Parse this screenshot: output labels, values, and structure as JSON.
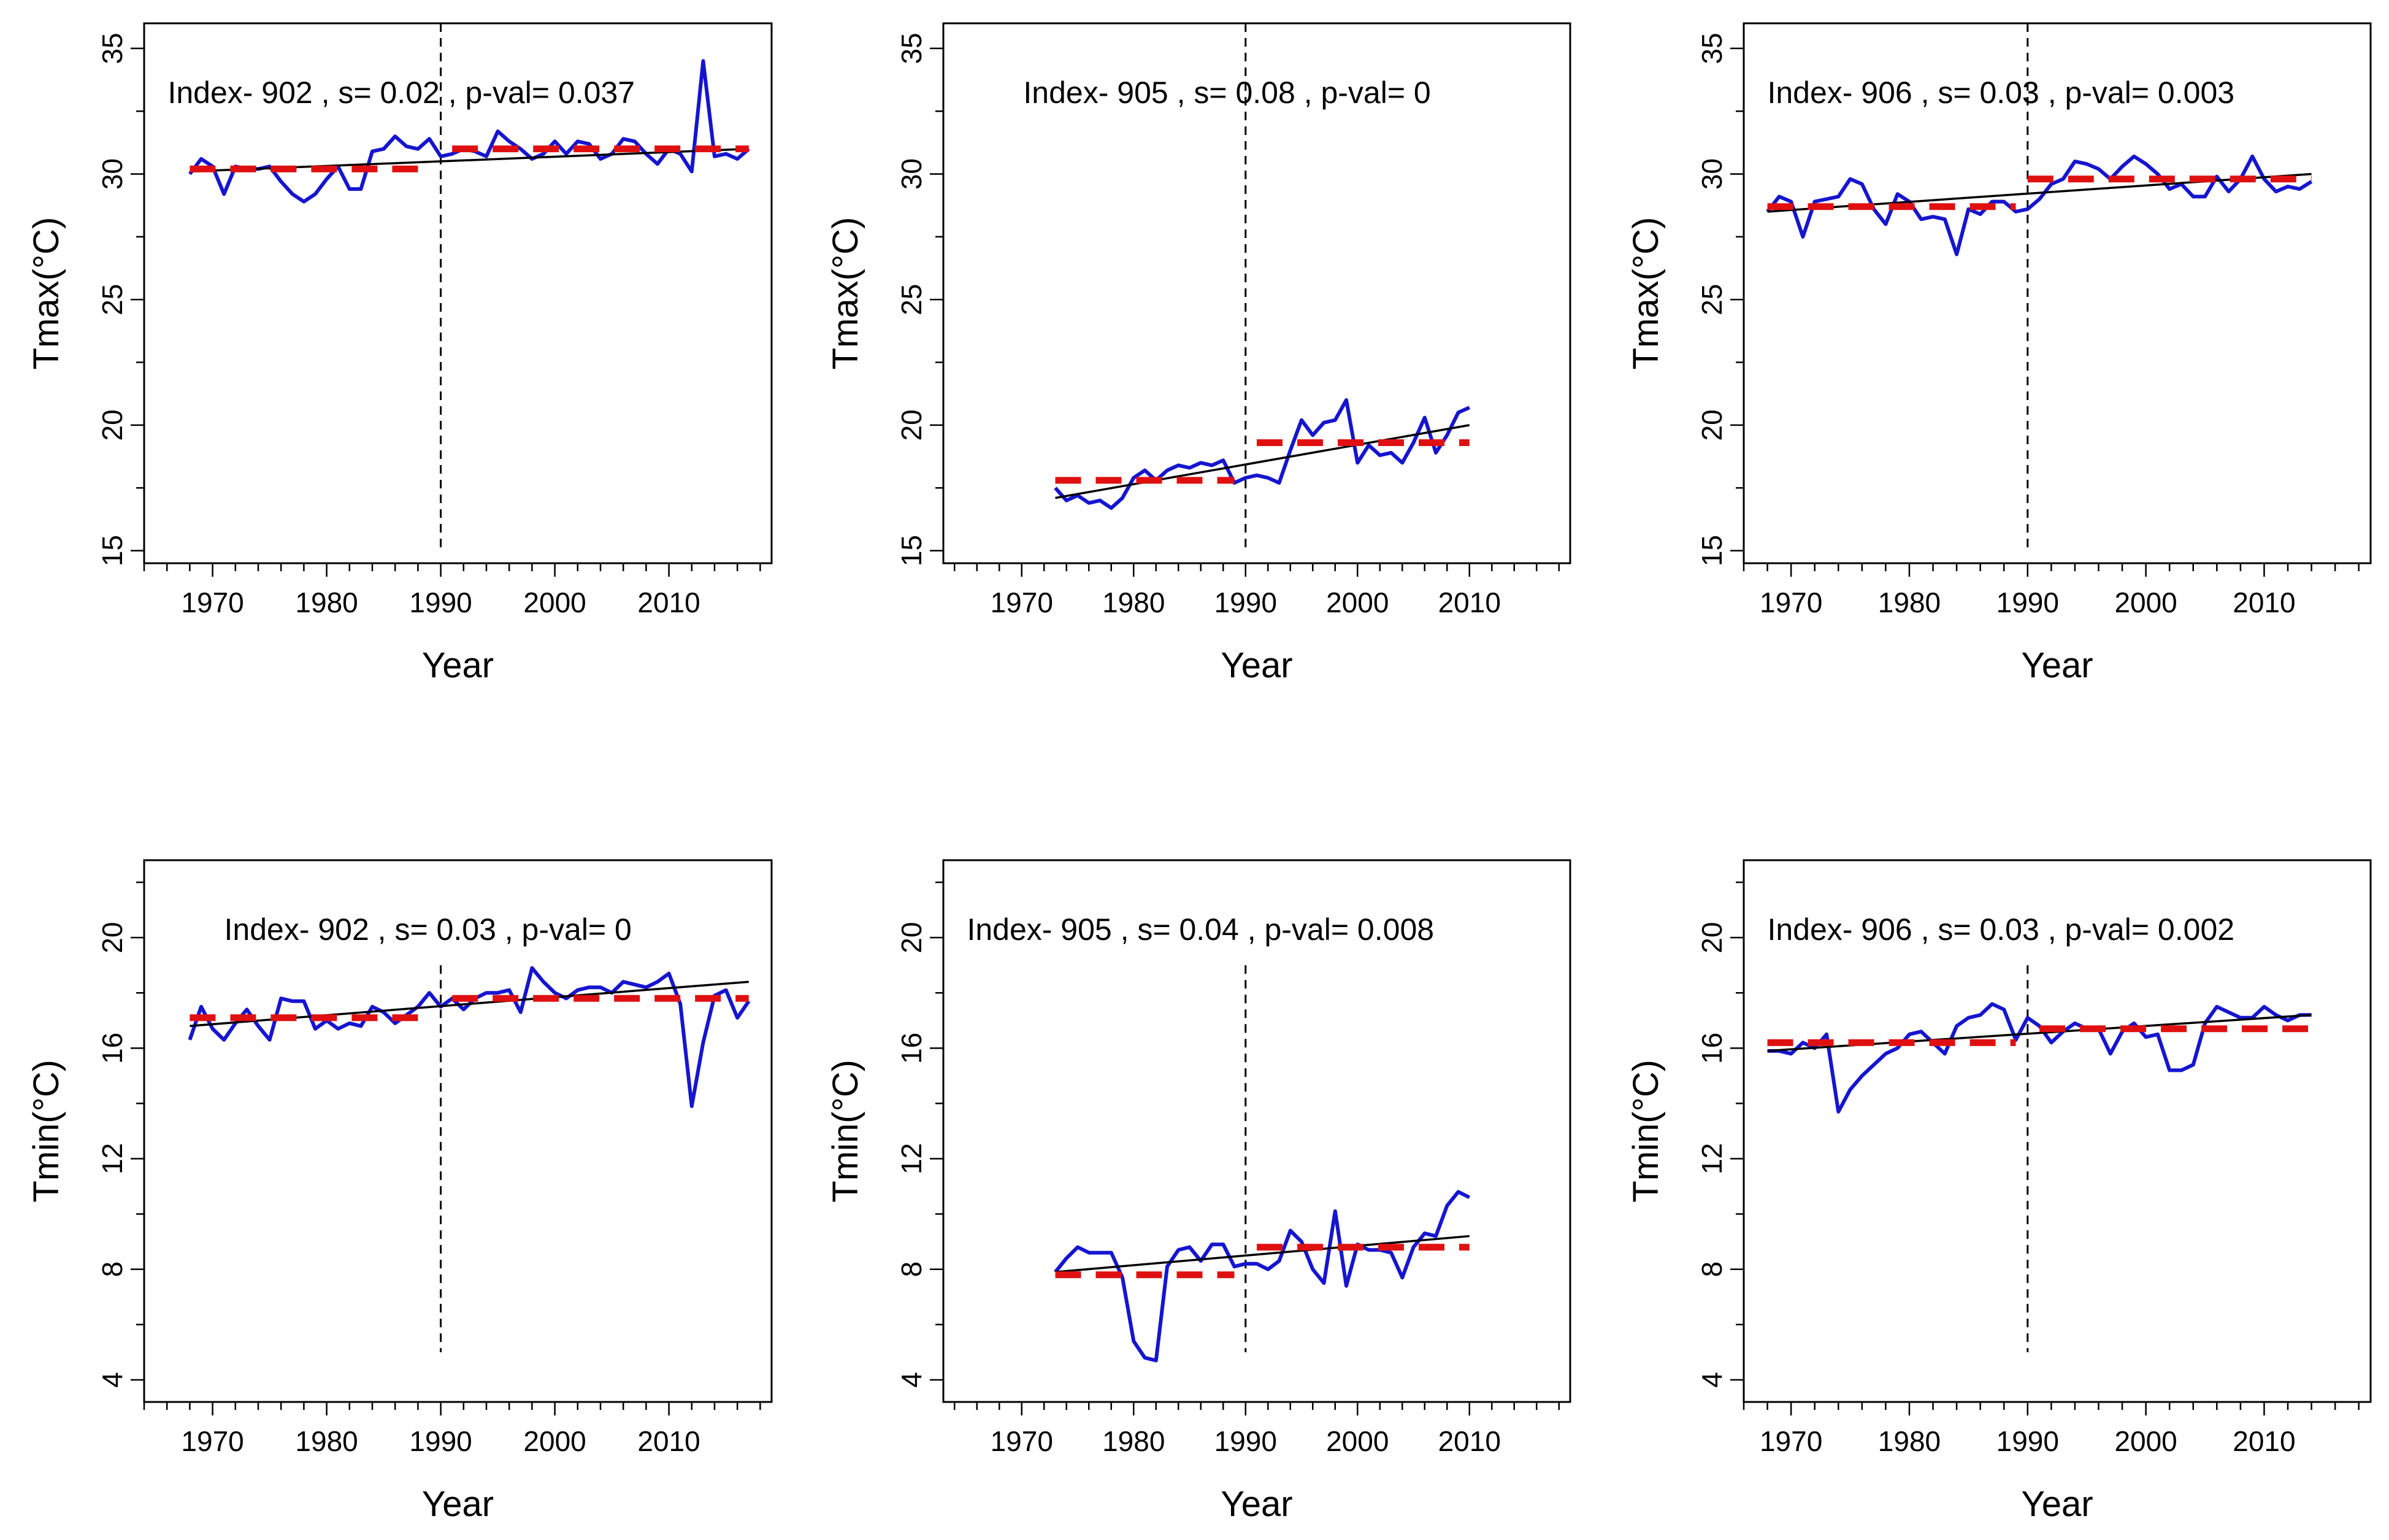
{
  "chart_data": [
    {
      "type": "line",
      "annotation": "Index- 902 , s= 0.02 , p-val= 0.037",
      "xlabel": "Year",
      "ylabel": "Tmax(°C)",
      "xlim": [
        1964,
        2019
      ],
      "ylim": [
        14.5,
        36
      ],
      "xticks": [
        "1970",
        "1980",
        "1990",
        "2000",
        "2010"
      ],
      "yticks": [
        "15",
        "20",
        "25",
        "30",
        "35"
      ],
      "change_point": 1990,
      "vline_y": [
        15,
        36
      ],
      "series": [
        {
          "role": "observed",
          "color": "#1515d0",
          "x": [
            1968,
            1969,
            1970,
            1971,
            1972,
            1973,
            1974,
            1975,
            1976,
            1977,
            1978,
            1979,
            1980,
            1981,
            1982,
            1983,
            1984,
            1985,
            1986,
            1987,
            1988,
            1989,
            1990,
            1991,
            1992,
            1993,
            1994,
            1995,
            1996,
            1997,
            1998,
            1999,
            2000,
            2001,
            2002,
            2003,
            2004,
            2005,
            2006,
            2007,
            2008,
            2009,
            2010,
            2011,
            2012,
            2013,
            2014,
            2015,
            2016,
            2017
          ],
          "y": [
            30.0,
            30.6,
            30.3,
            29.2,
            30.3,
            30.2,
            30.2,
            30.3,
            29.7,
            29.2,
            28.9,
            29.2,
            29.8,
            30.3,
            29.4,
            29.4,
            30.9,
            31.0,
            31.5,
            31.1,
            31.0,
            31.4,
            30.7,
            30.8,
            31.0,
            30.9,
            30.7,
            31.7,
            31.3,
            31.0,
            30.6,
            30.8,
            31.3,
            30.8,
            31.3,
            31.2,
            30.6,
            30.8,
            31.4,
            31.3,
            30.8,
            30.4,
            31.0,
            30.8,
            30.1,
            34.5,
            30.7,
            30.8,
            30.6,
            31.0
          ]
        },
        {
          "role": "trend",
          "color": "#000000",
          "x": [
            1968,
            2017
          ],
          "y": [
            30.1,
            31.0
          ]
        },
        {
          "role": "segment-mean",
          "color": "#e01010",
          "x": [
            1968,
            1989
          ],
          "y": [
            30.2,
            30.2
          ]
        },
        {
          "role": "segment-mean",
          "color": "#e01010",
          "x": [
            1991,
            2017
          ],
          "y": [
            31.0,
            31.0
          ]
        }
      ]
    },
    {
      "type": "line",
      "annotation": "Index- 905 , s= 0.08 , p-val= 0",
      "xlabel": "Year",
      "ylabel": "Tmax(°C)",
      "xlim": [
        1963,
        2019
      ],
      "ylim": [
        14.5,
        36
      ],
      "xticks": [
        "1970",
        "1980",
        "1990",
        "2000",
        "2010"
      ],
      "yticks": [
        "15",
        "20",
        "25",
        "30",
        "35"
      ],
      "change_point": 1990,
      "vline_y": [
        15,
        36
      ],
      "series": [
        {
          "role": "observed",
          "color": "#1515d0",
          "x": [
            1973,
            1974,
            1975,
            1976,
            1977,
            1978,
            1979,
            1980,
            1981,
            1982,
            1983,
            1984,
            1985,
            1986,
            1987,
            1988,
            1989,
            1990,
            1991,
            1992,
            1993,
            1994,
            1995,
            1996,
            1997,
            1998,
            1999,
            2000,
            2001,
            2002,
            2003,
            2004,
            2005,
            2006,
            2007,
            2008,
            2009,
            2010
          ],
          "y": [
            17.5,
            17.0,
            17.2,
            16.9,
            17.0,
            16.7,
            17.1,
            17.9,
            18.2,
            17.8,
            18.2,
            18.4,
            18.3,
            18.5,
            18.4,
            18.6,
            17.7,
            17.9,
            18.0,
            17.9,
            17.7,
            19.0,
            20.2,
            19.6,
            20.1,
            20.2,
            21.0,
            18.5,
            19.2,
            18.8,
            18.9,
            18.5,
            19.3,
            20.3,
            18.9,
            19.6,
            20.5,
            20.7
          ]
        },
        {
          "role": "trend",
          "color": "#000000",
          "x": [
            1973,
            2010
          ],
          "y": [
            17.1,
            20.0
          ]
        },
        {
          "role": "segment-mean",
          "color": "#e01010",
          "x": [
            1973,
            1989
          ],
          "y": [
            17.8,
            17.8
          ]
        },
        {
          "role": "segment-mean",
          "color": "#e01010",
          "x": [
            1991,
            2010
          ],
          "y": [
            19.3,
            19.3
          ]
        }
      ]
    },
    {
      "type": "line",
      "annotation": "Index- 906 , s= 0.03 , p-val= 0.003",
      "xlabel": "Year",
      "ylabel": "Tmax(°C)",
      "xlim": [
        1966,
        2019
      ],
      "ylim": [
        14.5,
        36
      ],
      "xticks": [
        "1970",
        "1980",
        "1990",
        "2000",
        "2010"
      ],
      "yticks": [
        "15",
        "20",
        "25",
        "30",
        "35"
      ],
      "change_point": 1990,
      "vline_y": [
        15,
        36
      ],
      "series": [
        {
          "role": "observed",
          "color": "#1515d0",
          "x": [
            1968,
            1969,
            1970,
            1971,
            1972,
            1973,
            1974,
            1975,
            1976,
            1977,
            1978,
            1979,
            1980,
            1981,
            1982,
            1983,
            1984,
            1985,
            1986,
            1987,
            1988,
            1989,
            1990,
            1991,
            1992,
            1993,
            1994,
            1995,
            1996,
            1997,
            1998,
            1999,
            2000,
            2001,
            2002,
            2003,
            2004,
            2005,
            2006,
            2007,
            2008,
            2009,
            2010,
            2011,
            2012,
            2013,
            2014
          ],
          "y": [
            28.5,
            29.1,
            28.9,
            27.5,
            28.9,
            29.0,
            29.1,
            29.8,
            29.6,
            28.6,
            28.0,
            29.2,
            28.9,
            28.2,
            28.3,
            28.2,
            26.8,
            28.6,
            28.4,
            28.9,
            28.9,
            28.5,
            28.6,
            29.0,
            29.6,
            29.8,
            30.5,
            30.4,
            30.2,
            29.8,
            30.3,
            30.7,
            30.4,
            30.0,
            29.4,
            29.6,
            29.1,
            29.1,
            29.9,
            29.3,
            29.8,
            30.7,
            29.8,
            29.3,
            29.5,
            29.4,
            29.7
          ]
        },
        {
          "role": "trend",
          "color": "#000000",
          "x": [
            1968,
            2014
          ],
          "y": [
            28.5,
            30.0
          ]
        },
        {
          "role": "segment-mean",
          "color": "#e01010",
          "x": [
            1968,
            1989
          ],
          "y": [
            28.7,
            28.7
          ]
        },
        {
          "role": "segment-mean",
          "color": "#e01010",
          "x": [
            1990,
            2014
          ],
          "y": [
            29.8,
            29.8
          ]
        }
      ]
    },
    {
      "type": "line",
      "annotation": "Index- 902 , s= 0.03 , p-val= 0",
      "xlabel": "Year",
      "ylabel": "Tmin(°C)",
      "xlim": [
        1964,
        2019
      ],
      "ylim": [
        3.2,
        22.8
      ],
      "xticks": [
        "1970",
        "1980",
        "1990",
        "2000",
        "2010"
      ],
      "yticks": [
        "4",
        "8",
        "12",
        "16",
        "20"
      ],
      "change_point": 1990,
      "vline_y": [
        5,
        19
      ],
      "series": [
        {
          "role": "observed",
          "color": "#1515d0",
          "x": [
            1968,
            1969,
            1970,
            1971,
            1972,
            1973,
            1974,
            1975,
            1976,
            1977,
            1978,
            1979,
            1980,
            1981,
            1982,
            1983,
            1984,
            1985,
            1986,
            1987,
            1988,
            1989,
            1990,
            1991,
            1992,
            1993,
            1994,
            1995,
            1996,
            1997,
            1998,
            1999,
            2000,
            2001,
            2002,
            2003,
            2004,
            2005,
            2006,
            2007,
            2008,
            2009,
            2010,
            2011,
            2012,
            2013,
            2014,
            2015,
            2016,
            2017
          ],
          "y": [
            16.3,
            17.5,
            16.7,
            16.3,
            16.9,
            17.4,
            16.8,
            16.3,
            17.8,
            17.7,
            17.7,
            16.7,
            17.0,
            16.7,
            16.9,
            16.8,
            17.5,
            17.3,
            16.9,
            17.2,
            17.5,
            18.0,
            17.5,
            17.8,
            17.4,
            17.8,
            18.0,
            18.0,
            18.1,
            17.3,
            18.9,
            18.4,
            18.0,
            17.8,
            18.1,
            18.2,
            18.2,
            18.0,
            18.4,
            18.3,
            18.2,
            18.4,
            18.7,
            17.6,
            13.9,
            16.2,
            17.9,
            18.1,
            17.1,
            17.7
          ]
        },
        {
          "role": "trend",
          "color": "#000000",
          "x": [
            1968,
            2017
          ],
          "y": [
            16.8,
            18.4
          ]
        },
        {
          "role": "segment-mean",
          "color": "#e01010",
          "x": [
            1968,
            1989
          ],
          "y": [
            17.1,
            17.1
          ]
        },
        {
          "role": "segment-mean",
          "color": "#e01010",
          "x": [
            1991,
            2017
          ],
          "y": [
            17.8,
            17.8
          ]
        }
      ]
    },
    {
      "type": "line",
      "annotation": "Index- 905 , s= 0.04 , p-val= 0.008",
      "xlabel": "Year",
      "ylabel": "Tmin(°C)",
      "xlim": [
        1963,
        2019
      ],
      "ylim": [
        3.2,
        22.8
      ],
      "xticks": [
        "1970",
        "1980",
        "1990",
        "2000",
        "2010"
      ],
      "yticks": [
        "4",
        "8",
        "12",
        "16",
        "20"
      ],
      "change_point": 1990,
      "vline_y": [
        5,
        19
      ],
      "series": [
        {
          "role": "observed",
          "color": "#1515d0",
          "x": [
            1973,
            1974,
            1975,
            1976,
            1977,
            1978,
            1979,
            1980,
            1981,
            1982,
            1983,
            1984,
            1985,
            1986,
            1987,
            1988,
            1989,
            1990,
            1991,
            1992,
            1993,
            1994,
            1995,
            1996,
            1997,
            1998,
            1999,
            2000,
            2001,
            2002,
            2003,
            2004,
            2005,
            2006,
            2007,
            2008,
            2009,
            2010
          ],
          "y": [
            7.9,
            8.4,
            8.8,
            8.6,
            8.6,
            8.6,
            7.7,
            5.4,
            4.8,
            4.7,
            8.1,
            8.7,
            8.8,
            8.3,
            8.9,
            8.9,
            8.1,
            8.2,
            8.2,
            8.0,
            8.3,
            9.4,
            9.0,
            8.0,
            7.5,
            10.1,
            7.4,
            8.9,
            8.7,
            8.7,
            8.6,
            7.7,
            8.8,
            9.3,
            9.2,
            10.3,
            10.8,
            10.6
          ]
        },
        {
          "role": "trend",
          "color": "#000000",
          "x": [
            1973,
            2010
          ],
          "y": [
            7.9,
            9.2
          ]
        },
        {
          "role": "segment-mean",
          "color": "#e01010",
          "x": [
            1973,
            1989
          ],
          "y": [
            7.8,
            7.8
          ]
        },
        {
          "role": "segment-mean",
          "color": "#e01010",
          "x": [
            1991,
            2010
          ],
          "y": [
            8.8,
            8.8
          ]
        }
      ]
    },
    {
      "type": "line",
      "annotation": "Index- 906 , s= 0.03 , p-val= 0.002",
      "xlabel": "Year",
      "ylabel": "Tmin(°C)",
      "xlim": [
        1966,
        2019
      ],
      "ylim": [
        3.2,
        22.8
      ],
      "xticks": [
        "1970",
        "1980",
        "1990",
        "2000",
        "2010"
      ],
      "yticks": [
        "4",
        "8",
        "12",
        "16",
        "20"
      ],
      "change_point": 1990,
      "vline_y": [
        5,
        19
      ],
      "series": [
        {
          "role": "observed",
          "color": "#1515d0",
          "x": [
            1968,
            1969,
            1970,
            1971,
            1972,
            1973,
            1974,
            1975,
            1976,
            1977,
            1978,
            1979,
            1980,
            1981,
            1982,
            1983,
            1984,
            1985,
            1986,
            1987,
            1988,
            1989,
            1990,
            1991,
            1992,
            1993,
            1994,
            1995,
            1996,
            1997,
            1998,
            1999,
            2000,
            2001,
            2002,
            2003,
            2004,
            2005,
            2006,
            2007,
            2008,
            2009,
            2010,
            2011,
            2012,
            2013,
            2014
          ],
          "y": [
            15.9,
            15.9,
            15.8,
            16.2,
            16.0,
            16.5,
            13.7,
            14.5,
            15.0,
            15.4,
            15.8,
            16.0,
            16.5,
            16.6,
            16.2,
            15.8,
            16.8,
            17.1,
            17.2,
            17.6,
            17.4,
            16.3,
            17.1,
            16.8,
            16.2,
            16.6,
            16.9,
            16.7,
            16.7,
            15.8,
            16.6,
            16.9,
            16.4,
            16.5,
            15.2,
            15.2,
            15.4,
            16.9,
            17.5,
            17.3,
            17.1,
            17.1,
            17.5,
            17.2,
            17.0,
            17.2,
            17.2
          ]
        },
        {
          "role": "trend",
          "color": "#000000",
          "x": [
            1968,
            2014
          ],
          "y": [
            15.9,
            17.2
          ]
        },
        {
          "role": "segment-mean",
          "color": "#e01010",
          "x": [
            1968,
            1989
          ],
          "y": [
            16.2,
            16.2
          ]
        },
        {
          "role": "segment-mean",
          "color": "#e01010",
          "x": [
            1991,
            2014
          ],
          "y": [
            16.7,
            16.7
          ]
        }
      ]
    }
  ]
}
